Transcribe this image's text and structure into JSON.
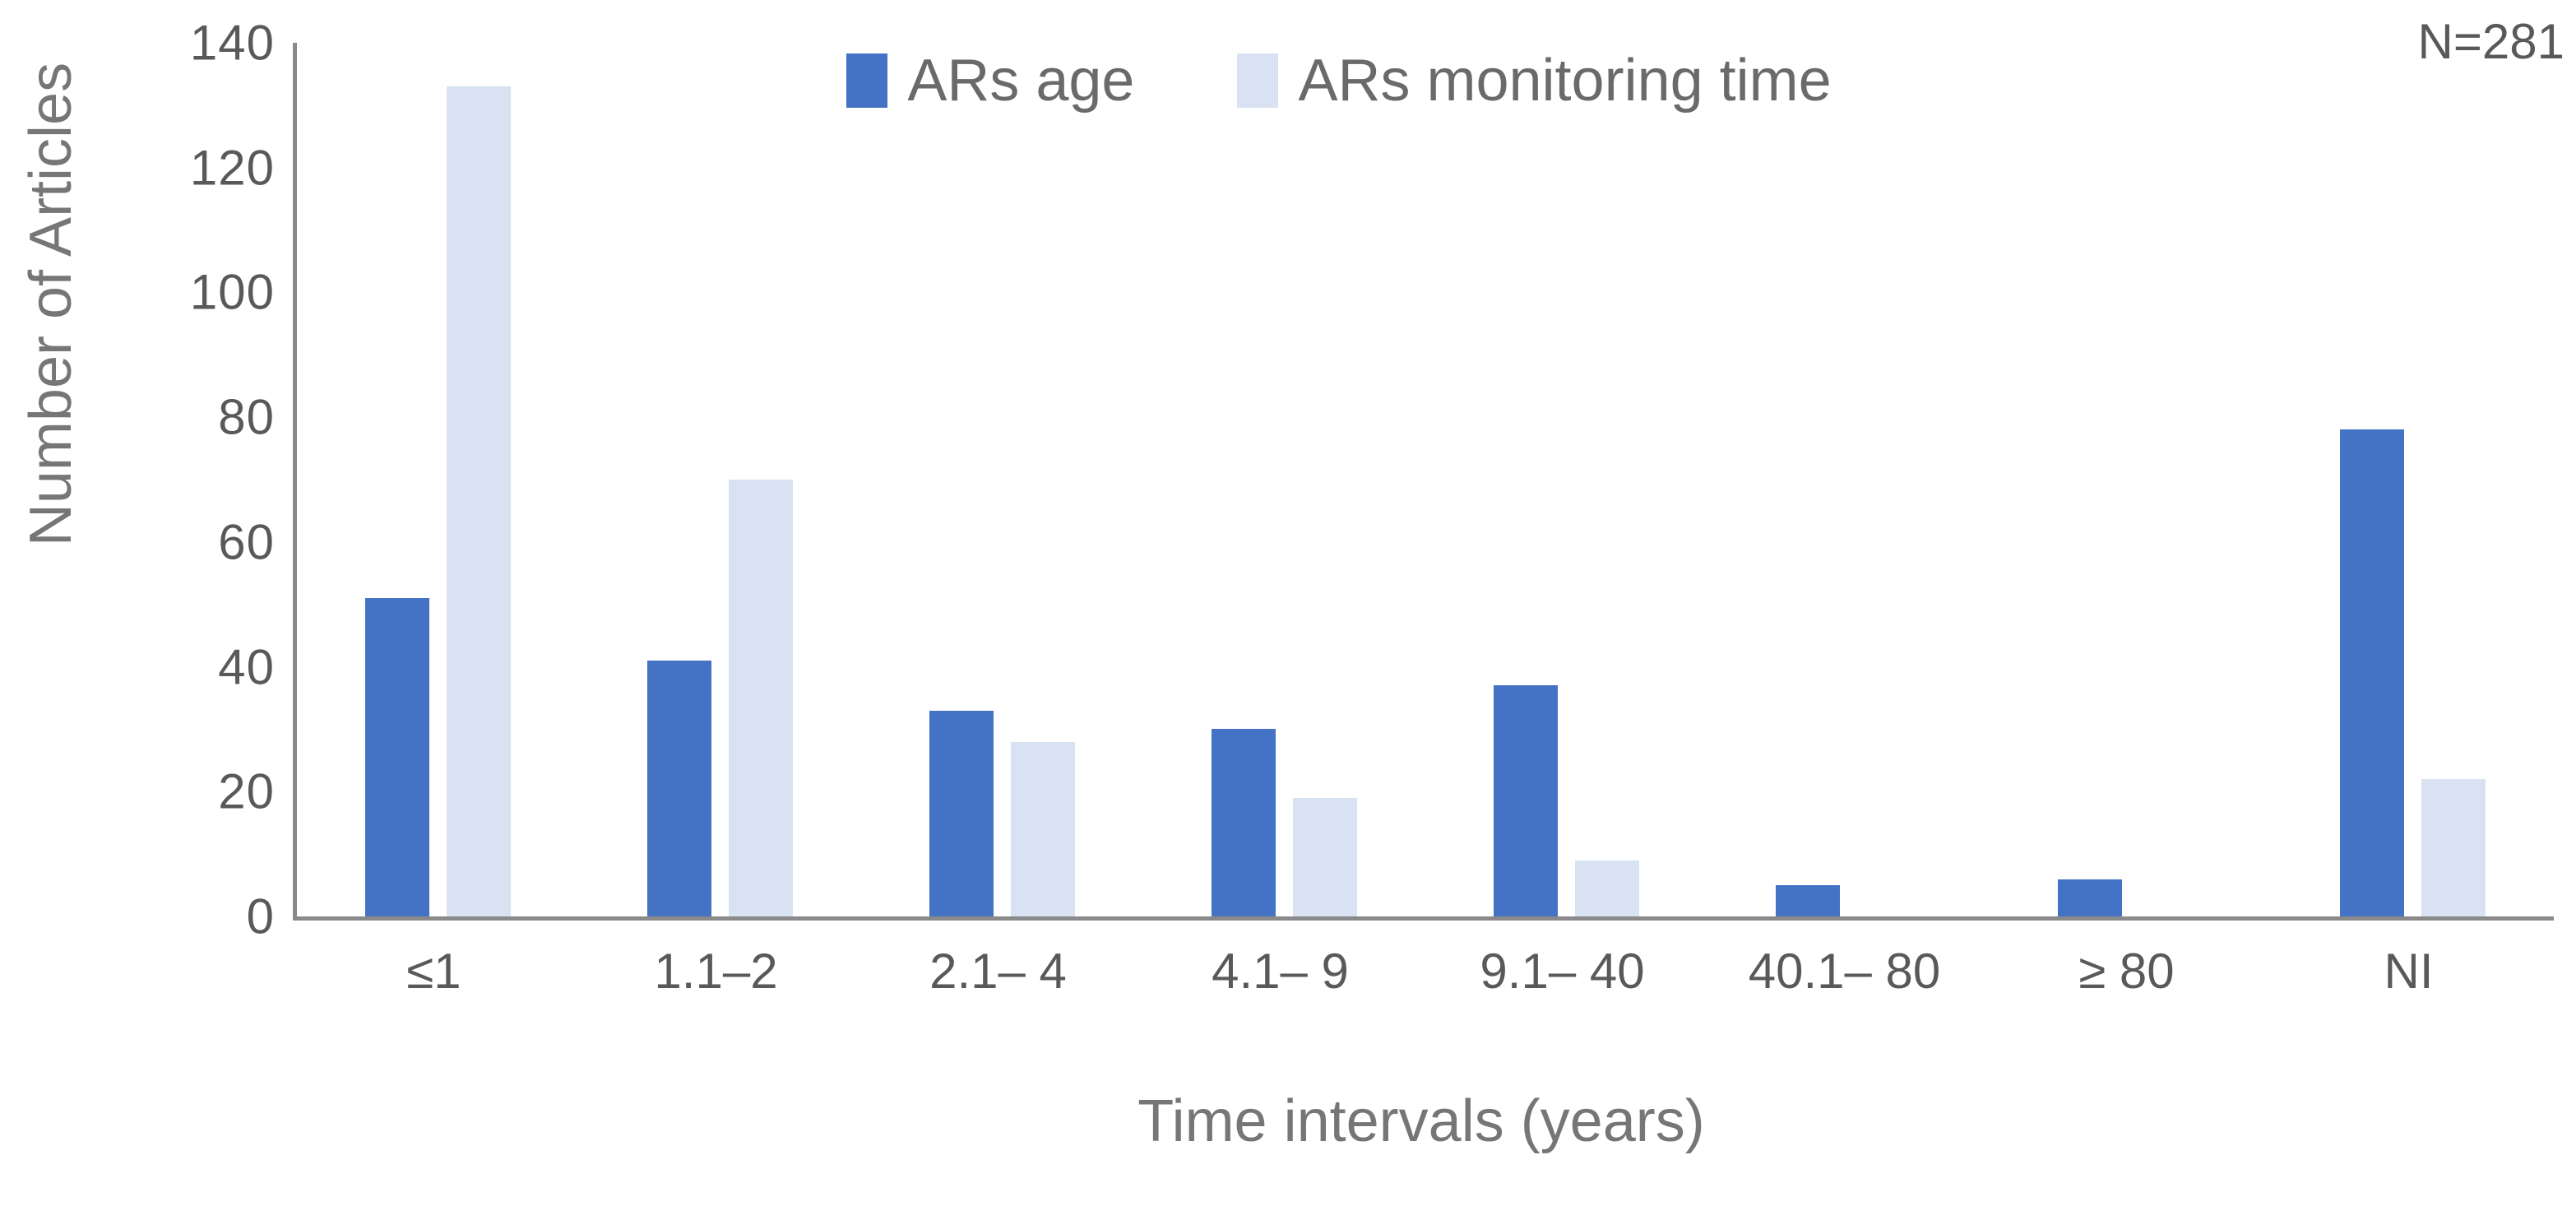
{
  "annotation": "N=281",
  "axis": {
    "x_title": "Time intervals (years)",
    "y_title": "Number of Articles"
  },
  "colors": {
    "ars_age": "#4472C4",
    "ars_monitoring_time": "#D9E2F3",
    "axis_line": "#8A8A8A",
    "tick_text": "#595959",
    "title_text": "#767676"
  },
  "chart_data": {
    "type": "bar",
    "title": "",
    "categories": [
      "≤1",
      "1.1–2",
      "2.1– 4",
      "4.1– 9",
      "9.1– 40",
      "40.1– 80",
      "≥ 80",
      "NI"
    ],
    "series": [
      {
        "name": "ARs age",
        "color": "#4472C4",
        "values": [
          51,
          41,
          33,
          30,
          37,
          5,
          6,
          78
        ]
      },
      {
        "name": "ARs monitoring time",
        "color": "#D9E2F3",
        "values": [
          133,
          70,
          28,
          19,
          9,
          0,
          0,
          22
        ]
      }
    ],
    "xlabel": "Time intervals (years)",
    "ylabel": "Number of Articles",
    "ylim": [
      0,
      140
    ],
    "yticks": [
      0,
      20,
      40,
      60,
      80,
      100,
      120,
      140
    ],
    "grid": false,
    "legend_position": "top-center",
    "annotation": "N=281",
    "total_n": 281
  }
}
